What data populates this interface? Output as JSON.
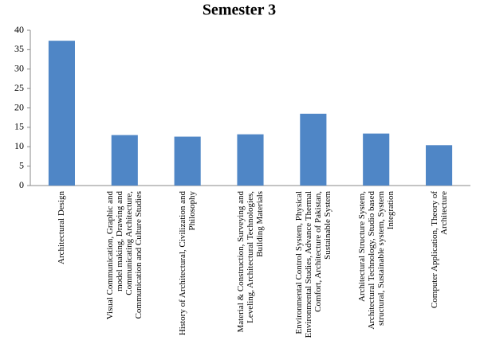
{
  "chart_data": {
    "type": "bar",
    "title": "Semester 3",
    "categories": [
      "Architectural Design",
      "Visual Communication, Graphic and model making, Drawing and Communicating Architecture, Communication and Culture Studies",
      "History of Architectural, Civilization and Philosophy",
      "Material & Construction, Surveying and Leveling, Architectural Technologies, Building Materials",
      "Environmental Control System, Physical Environmental Studies, Advance Thermal Comfort, Architecture of Pakistan, Sustainable System",
      "Architectural Structure System, Architectural Technology, Studio based structural, Sustainable system, System Integration",
      "Computer Application, Theory of Architecture"
    ],
    "values": [
      37.3,
      13,
      12.6,
      13.2,
      18.5,
      13.4,
      10.4
    ],
    "color": "#4f86c6",
    "ylim": [
      0,
      40
    ],
    "yticks": [
      0,
      5,
      10,
      15,
      20,
      25,
      30,
      35,
      40
    ],
    "grid": false
  }
}
